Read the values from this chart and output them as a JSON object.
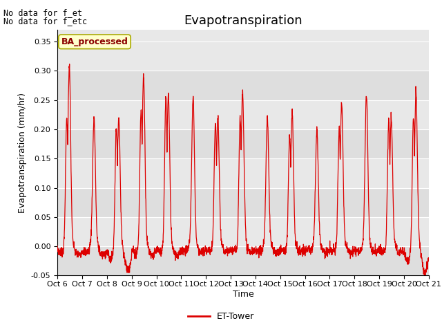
{
  "title": "Evapotranspiration",
  "ylabel": "Evapotranspiration (mm/hr)",
  "xlabel": "Time",
  "no_data_text1": "No data for f_et",
  "no_data_text2": "No data for f_etc",
  "legend_label": "ET-Tower",
  "legend_box_label": "BA_processed",
  "line_color": "#dd0000",
  "legend_box_bg": "#ffffcc",
  "legend_box_edge": "#aaaa00",
  "bg_color": "#e8e8e8",
  "ylim": [
    -0.05,
    0.37
  ],
  "yticks": [
    -0.05,
    0.0,
    0.05,
    0.1,
    0.15,
    0.2,
    0.25,
    0.3,
    0.35
  ],
  "x_tick_labels": [
    "Oct 6",
    "Oct 7",
    "Oct 8",
    "Oct 9",
    "Oct 10",
    "Oct 11",
    "Oct 12",
    "Oct 13",
    "Oct 14",
    "Oct 15",
    "Oct 16",
    "Oct 17",
    "Oct 18",
    "Oct 19",
    "Oct 20",
    "Oct 21"
  ],
  "num_days": 15,
  "points_per_day": 144,
  "day_peaks": [
    0.31,
    0.22,
    0.22,
    0.29,
    0.26,
    0.255,
    0.22,
    0.265,
    0.22,
    0.23,
    0.2,
    0.245,
    0.26,
    0.22,
    0.265
  ],
  "day_secondary_peaks": [
    0.22,
    0.0,
    0.205,
    0.235,
    0.255,
    0.0,
    0.21,
    0.22,
    0.0,
    0.19,
    0.0,
    0.2,
    0.0,
    0.215,
    0.22
  ],
  "day_troughs": [
    -0.01,
    -0.01,
    -0.035,
    -0.01,
    -0.01,
    -0.005,
    -0.005,
    -0.005,
    -0.005,
    -0.005,
    -0.005,
    -0.005,
    -0.005,
    -0.005,
    -0.04
  ],
  "title_fontsize": 13,
  "label_fontsize": 9,
  "tick_fontsize": 8,
  "figsize": [
    6.4,
    4.8
  ],
  "dpi": 100
}
